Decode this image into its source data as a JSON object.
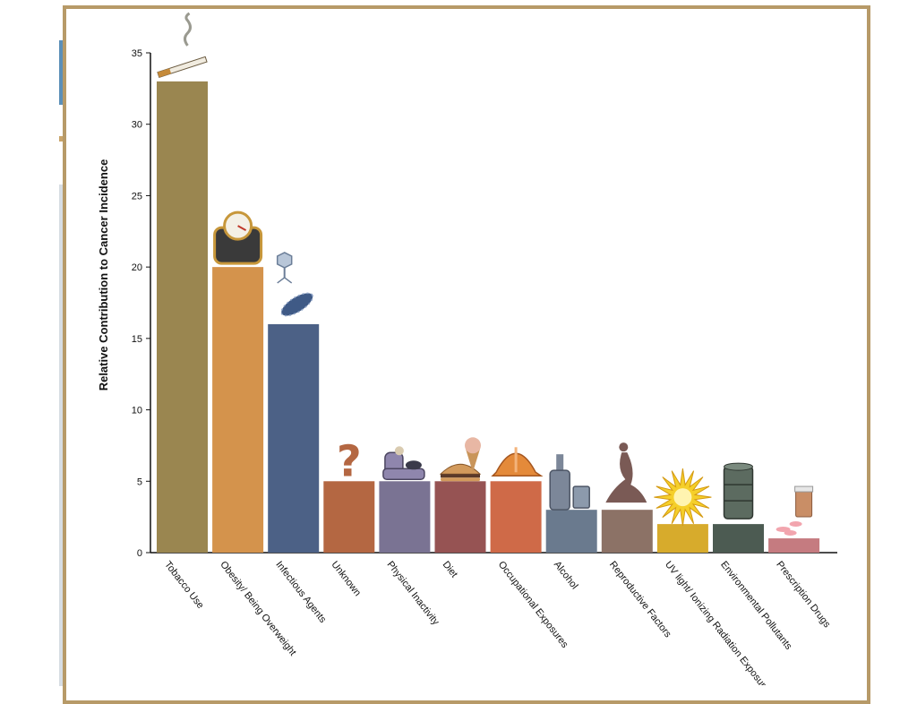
{
  "chart_data": {
    "type": "bar",
    "title": "",
    "xlabel": "",
    "ylabel": "Relative Contribution to Cancer Incidence",
    "ylim": [
      0,
      35
    ],
    "yticks": [
      0,
      5,
      10,
      15,
      20,
      25,
      30,
      35
    ],
    "grid": false,
    "categories": [
      "Tobacco Use",
      "Obesity/ Being Overweight",
      "Infectious Agents",
      "Unknown",
      "Physical Inactivity",
      "Diet",
      "Occupational Exposures",
      "Alcohol",
      "Reproductive Factors",
      "UV light/ Ionizing Radiation Exposure",
      "Environmental Pollutants",
      "Prescription Drugs"
    ],
    "values": [
      33,
      20,
      16,
      5,
      5,
      5,
      5,
      3,
      3,
      2,
      2,
      1
    ],
    "colors": [
      "#9a8650",
      "#d4934c",
      "#4c6186",
      "#b46742",
      "#7a7393",
      "#965353",
      "#cf6a48",
      "#6a7a8e",
      "#8c7266",
      "#d7ab2c",
      "#4c5b52",
      "#c57b80"
    ],
    "icons": [
      "cigarette-icon",
      "scale-icon",
      "microbe-icon",
      "question-mark-icon",
      "armchair-icon",
      "burger-icon",
      "hard-hat-icon",
      "bottle-icon",
      "kneeling-woman-icon",
      "sunburst-icon",
      "oil-drum-icon",
      "pill-bottle-icon"
    ]
  }
}
